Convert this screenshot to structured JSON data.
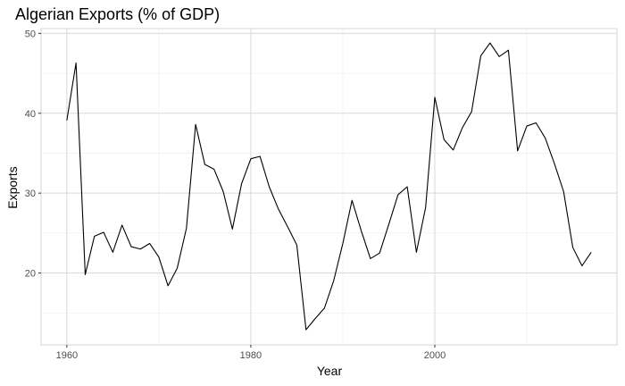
{
  "chart_data": {
    "type": "line",
    "title": "Algerian Exports (% of GDP)",
    "xlabel": "Year",
    "ylabel": "Exports",
    "xlim": [
      1957.2,
      2019.8
    ],
    "ylim": [
      11.0,
      50.6
    ],
    "x_ticks": [
      1960,
      1980,
      2000
    ],
    "y_ticks": [
      20,
      30,
      40,
      50
    ],
    "grid": true,
    "series": [
      {
        "x": [
          1960,
          1961,
          1962,
          1963,
          1964,
          1965,
          1966,
          1967,
          1968,
          1969,
          1970,
          1971,
          1972,
          1973,
          1974,
          1975,
          1976,
          1977,
          1978,
          1979,
          1980,
          1981,
          1982,
          1983,
          1984,
          1985,
          1986,
          1987,
          1988,
          1989,
          1990,
          1991,
          1992,
          1993,
          1994,
          1995,
          1996,
          1997,
          1998,
          1999,
          2000,
          2001,
          2002,
          2003,
          2004,
          2005,
          2006,
          2007,
          2008,
          2009,
          2010,
          2011,
          2012,
          2013,
          2014,
          2015,
          2016,
          2017
        ],
        "values": [
          39.1,
          46.3,
          19.8,
          24.6,
          25.1,
          22.6,
          26.0,
          23.3,
          23.0,
          23.7,
          22.0,
          18.4,
          20.6,
          25.6,
          38.6,
          33.6,
          33.0,
          30.2,
          25.5,
          31.2,
          34.3,
          34.6,
          30.8,
          28.0,
          25.8,
          23.5,
          12.9,
          14.3,
          15.6,
          19.0,
          23.7,
          29.1,
          25.3,
          21.8,
          22.5,
          26.1,
          29.8,
          30.8,
          22.6,
          28.2,
          42.0,
          36.7,
          35.4,
          38.2,
          40.2,
          47.2,
          48.8,
          47.1,
          47.9,
          35.3,
          38.4,
          38.8,
          36.9,
          33.7,
          30.2,
          23.2,
          20.9,
          22.6
        ],
        "color": "#000000"
      }
    ]
  }
}
